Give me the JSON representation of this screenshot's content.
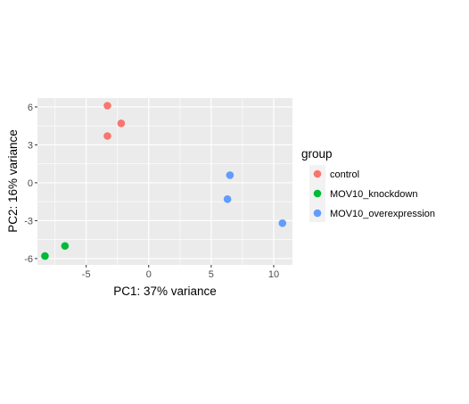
{
  "chart_data": {
    "type": "scatter",
    "title": "",
    "xlabel": "PC1: 37% variance",
    "ylabel": "PC2: 16% variance",
    "xlim": [
      -8.9,
      11.5
    ],
    "ylim": [
      -6.5,
      6.7
    ],
    "xticks": [
      -5,
      0,
      5,
      10
    ],
    "yticks": [
      -6,
      -3,
      0,
      3,
      6
    ],
    "grid": true,
    "legend": {
      "position": "right",
      "title": "group"
    },
    "series": [
      {
        "name": "control",
        "color": "#F8766D",
        "points": [
          [
            -3.3,
            6.1
          ],
          [
            -2.2,
            4.7
          ],
          [
            -3.3,
            3.7
          ]
        ]
      },
      {
        "name": "MOV10_knockdown",
        "color": "#00BA38",
        "points": [
          [
            -6.7,
            -5.0
          ],
          [
            -8.3,
            -5.8
          ]
        ]
      },
      {
        "name": "MOV10_overexpression",
        "color": "#619CFF",
        "points": [
          [
            6.5,
            0.6
          ],
          [
            6.3,
            -1.3
          ],
          [
            10.7,
            -3.2
          ]
        ]
      }
    ]
  }
}
